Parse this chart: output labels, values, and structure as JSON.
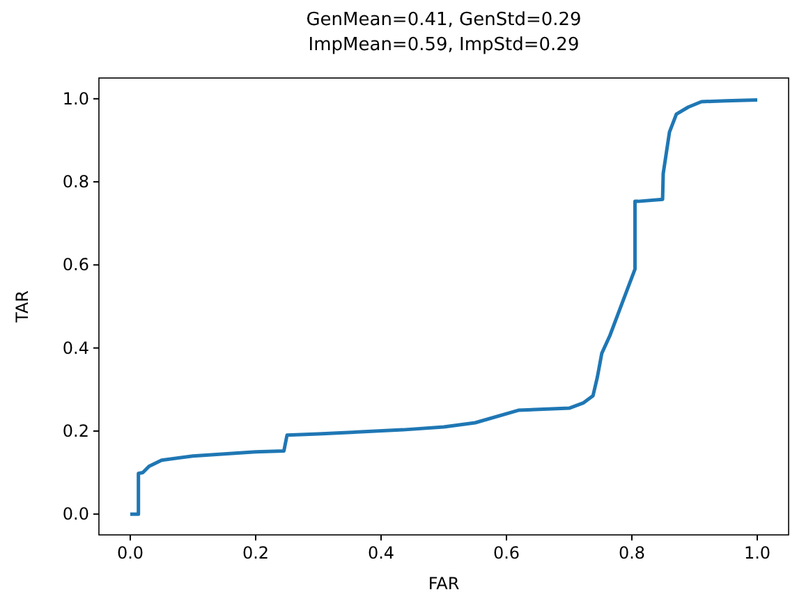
{
  "chart_data": {
    "type": "line",
    "title": "GenMean=0.41, GenStd=0.29\nImpMean=0.59, ImpStd=0.29",
    "xlabel": "FAR",
    "ylabel": "TAR",
    "x": [
      0,
      0.013,
      0.013,
      0.02,
      0.03,
      0.05,
      0.1,
      0.15,
      0.2,
      0.245,
      0.25,
      0.3,
      0.435,
      0.5,
      0.55,
      0.619,
      0.7,
      0.723,
      0.738,
      0.745,
      0.752,
      0.765,
      0.78,
      0.795,
      0.805,
      0.805,
      0.81,
      0.849,
      0.85,
      0.86,
      0.871,
      0.89,
      0.911,
      0.95,
      1.0
    ],
    "series": [
      {
        "color": "#1f77b4",
        "values": [
          0,
          0,
          0.098,
          0.1,
          0.115,
          0.13,
          0.14,
          0.145,
          0.15,
          0.152,
          0.19,
          0.193,
          0.203,
          0.21,
          0.22,
          0.25,
          0.255,
          0.268,
          0.285,
          0.33,
          0.387,
          0.43,
          0.49,
          0.55,
          0.59,
          0.753,
          0.753,
          0.758,
          0.82,
          0.92,
          0.963,
          0.98,
          0.993,
          0.995,
          0.997
        ]
      }
    ],
    "xlim": [
      -0.05,
      1.05
    ],
    "ylim": [
      -0.05,
      1.05
    ],
    "xticks": [
      {
        "value": 0,
        "label": "0.0"
      },
      0.2,
      0.4,
      0.6,
      0.8,
      {
        "value": 1,
        "label": "1.0"
      }
    ],
    "yticks": [
      {
        "value": 0,
        "label": "0.0"
      },
      0.2,
      0.4,
      0.6,
      0.8,
      {
        "value": 1,
        "label": "1.0"
      }
    ],
    "grid": false,
    "marker": "none",
    "line_style": "solid"
  }
}
